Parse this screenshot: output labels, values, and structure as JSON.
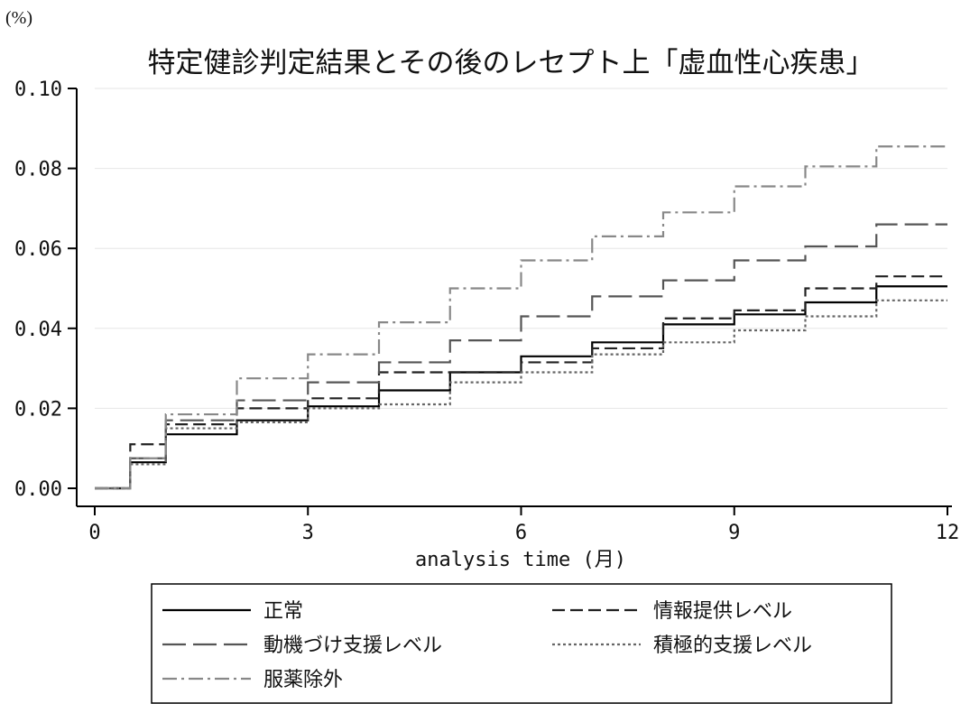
{
  "chart_data": {
    "type": "line",
    "step": true,
    "title": "特定健診判定結果とその後のレセプト上「虚血性心疾患」",
    "ylabel": "(%)",
    "xlabel": "analysis time (月)",
    "xlim": [
      0,
      12
    ],
    "ylim": [
      0,
      0.1
    ],
    "xticks": [
      0,
      3,
      6,
      9,
      12
    ],
    "yticks": [
      0,
      0.02,
      0.04,
      0.06,
      0.08,
      0.1
    ],
    "xtick_labels": [
      "0",
      "3",
      "6",
      "9",
      "12"
    ],
    "ytick_labels": [
      "0.00",
      "0.02",
      "0.04",
      "0.06",
      "0.08",
      "0.10"
    ],
    "grid": true,
    "legend_position": "bottom",
    "x": [
      0,
      0.5,
      1,
      2,
      3,
      4,
      5,
      6,
      7,
      8,
      9,
      10,
      11,
      12
    ],
    "series": [
      {
        "name": "正常",
        "style": "solid",
        "color": "#000000",
        "values": [
          0,
          0.0065,
          0.0135,
          0.017,
          0.0205,
          0.0245,
          0.029,
          0.033,
          0.0365,
          0.041,
          0.0435,
          0.0465,
          0.0505,
          0.0505
        ]
      },
      {
        "name": "情報提供レベル",
        "style": "dashed",
        "color": "#222222",
        "values": [
          0,
          0.011,
          0.016,
          0.02,
          0.0225,
          0.029,
          0.029,
          0.0315,
          0.035,
          0.0425,
          0.0445,
          0.05,
          0.053,
          0.053
        ]
      },
      {
        "name": "動機づけ支援レベル",
        "style": "longdash",
        "color": "#555555",
        "values": [
          0,
          0.0075,
          0.017,
          0.022,
          0.0265,
          0.0315,
          0.037,
          0.043,
          0.048,
          0.052,
          0.057,
          0.0605,
          0.066,
          0.066
        ]
      },
      {
        "name": "積極的支援レベル",
        "style": "dotted",
        "color": "#666666",
        "values": [
          0,
          0.006,
          0.015,
          0.0165,
          0.02,
          0.021,
          0.0265,
          0.029,
          0.0335,
          0.0365,
          0.0395,
          0.043,
          0.047,
          0.047
        ]
      },
      {
        "name": "服薬除外",
        "style": "dashdot",
        "color": "#888888",
        "values": [
          0,
          0.0075,
          0.0185,
          0.0275,
          0.0335,
          0.0415,
          0.05,
          0.057,
          0.063,
          0.069,
          0.0755,
          0.0805,
          0.0855,
          0.0855
        ]
      }
    ]
  },
  "colors": {
    "axis": "#000000",
    "grid": "#e6e6e6",
    "background": "#ffffff"
  }
}
